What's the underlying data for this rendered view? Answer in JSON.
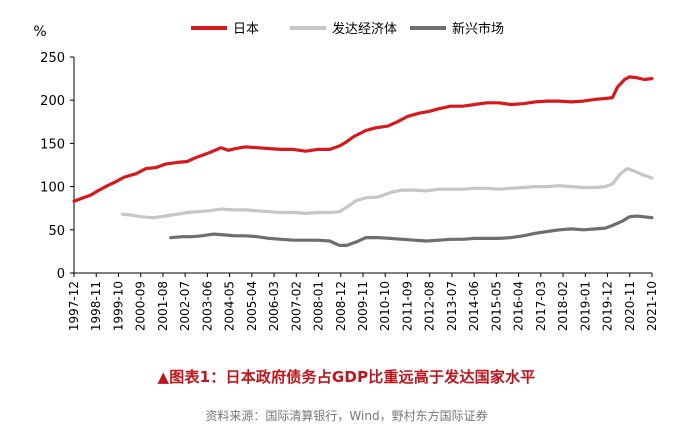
{
  "chart_data": {
    "type": "line",
    "y_unit": "%",
    "ylim": [
      0,
      250
    ],
    "y_ticks": [
      0,
      50,
      100,
      150,
      200,
      250
    ],
    "grid": false,
    "legend_position": "top",
    "x_tick_labels": [
      "1997-12",
      "1998-11",
      "1999-10",
      "2000-09",
      "2001-08",
      "2002-07",
      "2003-06",
      "2004-05",
      "2005-04",
      "2006-03",
      "2007-02",
      "2008-01",
      "2008-12",
      "2009-11",
      "2010-10",
      "2011-09",
      "2012-08",
      "2013-07",
      "2014-06",
      "2015-05",
      "2016-04",
      "2017-03",
      "2018-02",
      "2019-01",
      "2019-12",
      "2020-11",
      "2021-10"
    ],
    "x_domain": [
      1997.917,
      2021.833
    ],
    "series": [
      {
        "name": "日本",
        "color": "#d7191c",
        "x": [
          1997.92,
          1998.3,
          1998.6,
          1998.9,
          1999.3,
          1999.6,
          2000.0,
          2000.5,
          2000.9,
          2001.3,
          2001.7,
          2002.2,
          2002.6,
          2003.0,
          2003.5,
          2004.0,
          2004.3,
          2004.6,
          2005.0,
          2005.5,
          2006.0,
          2006.5,
          2007.0,
          2007.5,
          2008.0,
          2008.5,
          2008.9,
          2009.2,
          2009.5,
          2010.0,
          2010.4,
          2010.9,
          2011.3,
          2011.7,
          2012.2,
          2012.6,
          2013.0,
          2013.5,
          2014.0,
          2014.5,
          2015.0,
          2015.5,
          2016.0,
          2016.5,
          2017.0,
          2017.5,
          2018.0,
          2018.5,
          2019.0,
          2019.5,
          2019.9,
          2020.2,
          2020.4,
          2020.7,
          2020.9,
          2021.2,
          2021.5,
          2021.83
        ],
        "values": [
          83,
          87,
          90,
          95,
          101,
          105,
          111,
          115,
          121,
          122,
          126,
          128,
          129,
          134,
          139,
          145,
          142,
          144,
          146,
          145,
          144,
          143,
          143,
          141,
          143,
          143,
          147,
          152,
          158,
          165,
          168,
          170,
          175,
          181,
          185,
          187,
          190,
          193,
          193,
          195,
          197,
          197,
          195,
          196,
          198,
          199,
          199,
          198,
          199,
          201,
          202,
          203,
          215,
          224,
          227,
          226,
          224,
          225
        ]
      },
      {
        "name": "发达经济体",
        "color": "#c6c6c6",
        "x": [
          1999.92,
          2000.3,
          2000.7,
          2001.2,
          2001.7,
          2002.2,
          2002.6,
          2003.0,
          2003.5,
          2004.0,
          2004.5,
          2005.0,
          2005.5,
          2006.0,
          2006.5,
          2007.0,
          2007.5,
          2008.0,
          2008.5,
          2008.9,
          2009.2,
          2009.6,
          2010.0,
          2010.5,
          2011.0,
          2011.5,
          2012.0,
          2012.5,
          2013.0,
          2013.5,
          2014.0,
          2014.5,
          2015.0,
          2015.5,
          2016.0,
          2016.5,
          2017.0,
          2017.5,
          2018.0,
          2018.5,
          2019.0,
          2019.5,
          2019.9,
          2020.2,
          2020.5,
          2020.8,
          2021.1,
          2021.5,
          2021.83
        ],
        "values": [
          68,
          67,
          65,
          64,
          66,
          68,
          70,
          71,
          72,
          74,
          73,
          73,
          72,
          71,
          70,
          70,
          69,
          70,
          70,
          71,
          76,
          84,
          87,
          88,
          93,
          96,
          96,
          95,
          97,
          97,
          97,
          98,
          98,
          97,
          98,
          99,
          100,
          100,
          101,
          100,
          99,
          99,
          100,
          103,
          114,
          121,
          118,
          113,
          110
        ]
      },
      {
        "name": "新兴市场",
        "color": "#6e6e6e",
        "x": [
          2001.92,
          2002.4,
          2002.8,
          2003.2,
          2003.7,
          2004.2,
          2004.6,
          2005.0,
          2005.5,
          2006.0,
          2006.5,
          2007.0,
          2007.5,
          2008.0,
          2008.5,
          2008.9,
          2009.2,
          2009.6,
          2010.0,
          2010.5,
          2011.0,
          2011.5,
          2012.0,
          2012.5,
          2013.0,
          2013.5,
          2014.0,
          2014.5,
          2015.0,
          2015.5,
          2016.0,
          2016.5,
          2017.0,
          2017.5,
          2018.0,
          2018.5,
          2019.0,
          2019.5,
          2019.9,
          2020.2,
          2020.6,
          2020.9,
          2021.2,
          2021.5,
          2021.83
        ],
        "values": [
          41,
          42,
          42,
          43,
          45,
          44,
          43,
          43,
          42,
          40,
          39,
          38,
          38,
          38,
          37,
          32,
          32,
          36,
          41,
          41,
          40,
          39,
          38,
          37,
          38,
          39,
          39,
          40,
          40,
          40,
          41,
          43,
          46,
          48,
          50,
          51,
          50,
          51,
          52,
          55,
          60,
          65,
          66,
          65,
          64
        ]
      }
    ]
  },
  "caption": "▲图表1：日本政府债务占GDP比重远高于发达国家水平",
  "source": "资料来源：国际清算银行，Wind，野村东方国际证券"
}
